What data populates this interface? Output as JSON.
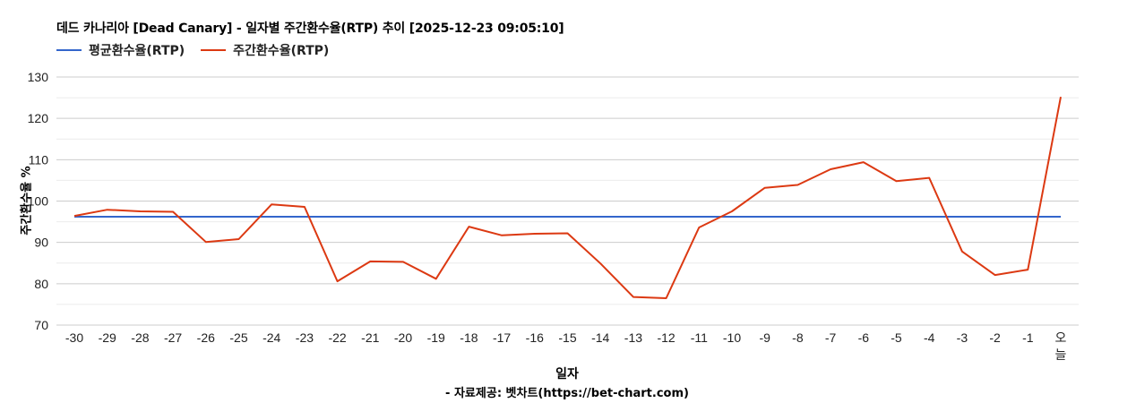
{
  "title": "데드 카나리아 [Dead Canary] - 일자별 주간환수율(RTP) 추이 [2025-12-23 09:05:10]",
  "legend": [
    {
      "label": "평균환수율(RTP)",
      "color": "#3366cc"
    },
    {
      "label": "주간환수율(RTP)",
      "color": "#dc3912"
    }
  ],
  "axes": {
    "ylabel": "주간환수율 %",
    "xlabel": "일자"
  },
  "source": "- 자료제공: 벳차트(https://bet-chart.com)",
  "chart_data": {
    "type": "line",
    "title": "데드 카나리아 [Dead Canary] - 일자별 주간환수율(RTP) 추이 [2025-12-23 09:05:10]",
    "xlabel": "일자",
    "ylabel": "주간환수율 %",
    "ylim": [
      70,
      130
    ],
    "yticks": [
      70,
      80,
      90,
      100,
      110,
      120,
      130
    ],
    "grid": true,
    "legend_position": "top-left",
    "categories": [
      "-30",
      "-29",
      "-28",
      "-27",
      "-26",
      "-25",
      "-24",
      "-23",
      "-22",
      "-21",
      "-20",
      "-19",
      "-18",
      "-17",
      "-16",
      "-15",
      "-14",
      "-13",
      "-12",
      "-11",
      "-10",
      "-9",
      "-8",
      "-7",
      "-6",
      "-5",
      "-4",
      "-3",
      "-2",
      "-1",
      "오늘"
    ],
    "series": [
      {
        "name": "평균환수율(RTP)",
        "color": "#3366cc",
        "values": [
          96.2,
          96.2,
          96.2,
          96.2,
          96.2,
          96.2,
          96.2,
          96.2,
          96.2,
          96.2,
          96.2,
          96.2,
          96.2,
          96.2,
          96.2,
          96.2,
          96.2,
          96.2,
          96.2,
          96.2,
          96.2,
          96.2,
          96.2,
          96.2,
          96.2,
          96.2,
          96.2,
          96.2,
          96.2,
          96.2,
          96.2
        ]
      },
      {
        "name": "주간환수율(RTP)",
        "color": "#dc3912",
        "values": [
          96.4,
          97.9,
          97.5,
          97.4,
          90.1,
          90.8,
          99.2,
          98.6,
          80.6,
          85.4,
          85.3,
          81.2,
          93.8,
          91.7,
          92.1,
          92.2,
          84.9,
          76.8,
          76.5,
          93.6,
          97.5,
          103.2,
          103.9,
          107.7,
          109.4,
          104.8,
          105.6,
          87.8,
          82.1,
          83.4,
          125.2
        ]
      }
    ],
    "annotations": [
      "- 자료제공: 벳차트(https://bet-chart.com)"
    ]
  }
}
